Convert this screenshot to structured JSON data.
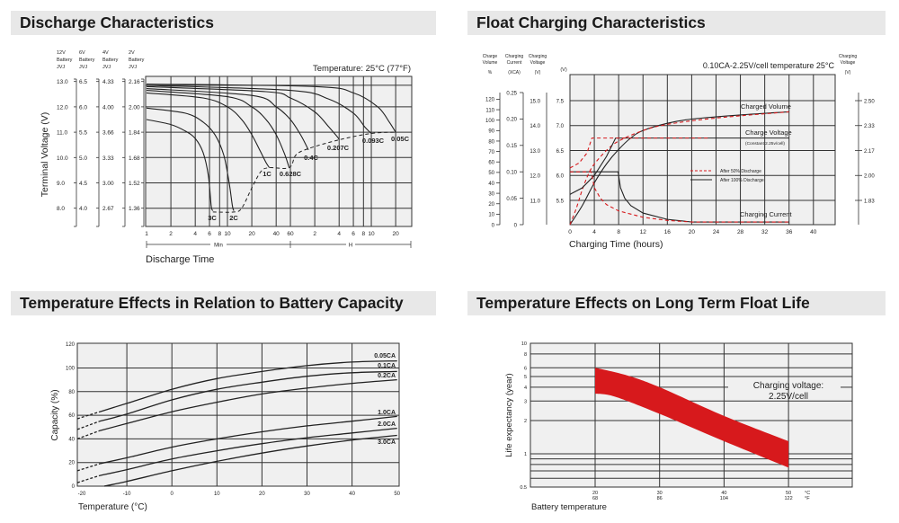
{
  "colors": {
    "accent_red": "#d7191c",
    "grid": "#333333",
    "plot_bg": "#f0f0f0",
    "header_bg": "#e8e8e8"
  },
  "chart_data": [
    {
      "type": "line",
      "title": "Discharge Characteristics",
      "xlabel": "Discharge Time",
      "ylabel": "Terminal Voltage (V)",
      "annotation": "Temperature: 25°C (77°F)",
      "x_scale": "log",
      "x_unit": "minutes",
      "x_ticks_min": [
        "1",
        "2",
        "4",
        "6",
        "8",
        "10",
        "20",
        "40",
        "60"
      ],
      "x_ticks_h": [
        "2",
        "4",
        "6",
        "8",
        "10",
        "20"
      ],
      "x_sections": [
        "Min",
        "H"
      ],
      "voltage_scales": [
        {
          "header": [
            "12V",
            "Battery",
            "JVJ"
          ],
          "ticks": [
            "13.0",
            "12.0",
            "11.0",
            "10.0",
            "9.0",
            "8.0"
          ]
        },
        {
          "header": [
            "6V",
            "Battery",
            "JVJ"
          ],
          "ticks": [
            "6.5",
            "6.0",
            "5.5",
            "5.0",
            "4.5",
            "4.0"
          ]
        },
        {
          "header": [
            "4V",
            "Battery",
            "JVJ"
          ],
          "ticks": [
            "4.33",
            "4.00",
            "3.66",
            "3.33",
            "3.00",
            "2.67"
          ]
        },
        {
          "header": [
            "2V",
            "Battery",
            "JVJ"
          ],
          "ticks": [
            "2.16",
            "2.00",
            "1.84",
            "1.68",
            "1.52",
            "1.36"
          ]
        }
      ],
      "grid": true,
      "series": [
        {
          "name": "3C",
          "points": [
            [
              1,
              11.5
            ],
            [
              2,
              11.3
            ],
            [
              3,
              11.05
            ],
            [
              4,
              10.75
            ],
            [
              5,
              10.2
            ],
            [
              5.8,
              9.3
            ],
            [
              6.3,
              8.1
            ],
            [
              6.6,
              7.9
            ]
          ]
        },
        {
          "name": "2C",
          "points": [
            [
              1,
              11.95
            ],
            [
              3,
              11.75
            ],
            [
              5,
              11.4
            ],
            [
              7,
              10.9
            ],
            [
              9,
              10.1
            ],
            [
              10.5,
              9.0
            ],
            [
              11.5,
              8.1
            ],
            [
              12,
              7.9
            ]
          ]
        },
        {
          "name": "1C",
          "points": [
            [
              1,
              12.55
            ],
            [
              5,
              12.35
            ],
            [
              10,
              12.0
            ],
            [
              15,
              11.5
            ],
            [
              20,
              10.9
            ],
            [
              25,
              10.3
            ],
            [
              30,
              9.8
            ],
            [
              33,
              9.6
            ]
          ]
        },
        {
          "name": "0.628C",
          "points": [
            [
              1,
              12.65
            ],
            [
              10,
              12.4
            ],
            [
              20,
              12.0
            ],
            [
              30,
              11.5
            ],
            [
              40,
              10.9
            ],
            [
              50,
              10.2
            ],
            [
              56,
              9.75
            ],
            [
              58,
              9.6
            ]
          ]
        },
        {
          "name": "0.4C",
          "points": [
            [
              1,
              12.72
            ],
            [
              20,
              12.45
            ],
            [
              40,
              12.0
            ],
            [
              60,
              11.5
            ],
            [
              80,
              10.9
            ],
            [
              95,
              10.45
            ],
            [
              100,
              10.3
            ]
          ]
        },
        {
          "name": "0.207C",
          "points": [
            [
              1,
              12.8
            ],
            [
              30,
              12.6
            ],
            [
              60,
              12.35
            ],
            [
              120,
              11.8
            ],
            [
              180,
              11.2
            ],
            [
              230,
              10.8
            ],
            [
              240,
              10.7
            ]
          ]
        },
        {
          "name": "0.093C",
          "points": [
            [
              1,
              12.85
            ],
            [
              60,
              12.65
            ],
            [
              180,
              12.3
            ],
            [
              360,
              11.75
            ],
            [
              500,
              11.2
            ],
            [
              600,
              10.95
            ]
          ]
        },
        {
          "name": "0.05C",
          "points": [
            [
              1,
              12.9
            ],
            [
              120,
              12.8
            ],
            [
              360,
              12.55
            ],
            [
              720,
              12.0
            ],
            [
              1000,
              11.4
            ],
            [
              1200,
              11.0
            ]
          ]
        }
      ],
      "cutoff_line": [
        [
          6.6,
          7.85
        ],
        [
          12,
          7.85
        ],
        [
          15,
          8.0
        ],
        [
          20,
          8.8
        ],
        [
          26,
          9.45
        ],
        [
          33,
          9.6
        ],
        [
          58,
          9.6
        ],
        [
          70,
          10.1
        ],
        [
          100,
          10.35
        ],
        [
          240,
          10.7
        ],
        [
          600,
          10.95
        ],
        [
          1200,
          11.0
        ]
      ]
    },
    {
      "type": "line",
      "title": "Float Charging Characteristics",
      "xlabel": "Charging Time (hours)",
      "annotation": "0.10CA-2.25V/cell  temperature 25°C",
      "xlim": [
        0,
        40
      ],
      "x_ticks": [
        "0",
        "4",
        "8",
        "12",
        "16",
        "20",
        "24",
        "28",
        "32",
        "36",
        "40"
      ],
      "axes": {
        "charge_volume": {
          "header": [
            "Charge",
            "Volume",
            "%"
          ],
          "ticks": [
            "0",
            "10",
            "20",
            "30",
            "40",
            "50",
            "60",
            "70",
            "80",
            "90",
            "100",
            "110",
            "120"
          ]
        },
        "charging_current": {
          "header": [
            "Charging",
            "Current",
            "(XCA)"
          ],
          "ticks": [
            "0",
            "0.05",
            "0.10",
            "0.15",
            "0.20",
            "0.25"
          ]
        },
        "charging_voltage_12v": {
          "header": [
            "Charging",
            "Voltage",
            "(V)"
          ],
          "ticks": [
            "11.0",
            "12.0",
            "13.0",
            "14.0",
            "15.0"
          ]
        },
        "voltage_6v": {
          "header": [
            "(V)"
          ],
          "ticks": [
            "5.5",
            "6.0",
            "6.5",
            "7.0",
            "7.5"
          ]
        },
        "voltage_cell": {
          "header": [
            "Charging",
            "Voltage",
            "(V)"
          ],
          "ticks": [
            "1.83",
            "2.00",
            "2.17",
            "2.33",
            "2.50"
          ]
        }
      },
      "curve_labels": {
        "volume": "Charged Volume",
        "voltage": "Charge Voltage",
        "voltage_note": "(Constant 2.25v/cell)",
        "current": "Charging Current"
      },
      "legend": {
        "placement": "center-right",
        "entries": [
          {
            "name": "After  50% Discharge",
            "style": "red-dashed"
          },
          {
            "name": "After 100% Discharge",
            "style": "black-solid"
          }
        ]
      },
      "series": [
        {
          "name": "After 100% Discharge",
          "quantity": "charged_volume_pct",
          "points": [
            [
              0,
              0
            ],
            [
              2,
              18
            ],
            [
              4,
              40
            ],
            [
              6,
              58
            ],
            [
              8,
              72
            ],
            [
              10,
              83
            ],
            [
              12,
              90
            ],
            [
              16,
              97
            ],
            [
              20,
              101
            ],
            [
              28,
              105
            ],
            [
              36,
              108
            ]
          ]
        },
        {
          "name": "After  50% Discharge",
          "quantity": "charged_volume_pct",
          "points": [
            [
              0,
              0
            ],
            [
              1,
              15
            ],
            [
              2,
              33
            ],
            [
              3,
              48
            ],
            [
              4,
              58
            ],
            [
              6,
              71
            ],
            [
              8,
              80
            ],
            [
              12,
              90
            ],
            [
              16,
              96
            ],
            [
              24,
              102
            ],
            [
              36,
              108
            ]
          ]
        },
        {
          "name": "After 100% Discharge",
          "quantity": "charge_voltage_6v",
          "points": [
            [
              0,
              5.62
            ],
            [
              2,
              5.75
            ],
            [
              4,
              6.0
            ],
            [
              6,
              6.38
            ],
            [
              7.5,
              6.75
            ],
            [
              12,
              6.75
            ],
            [
              36,
              6.75
            ]
          ]
        },
        {
          "name": "After  50% Discharge",
          "quantity": "charge_voltage_6v",
          "points": [
            [
              0,
              6.15
            ],
            [
              1.5,
              6.25
            ],
            [
              2.8,
              6.45
            ],
            [
              3.6,
              6.75
            ],
            [
              10,
              6.75
            ],
            [
              22.7,
              6.75
            ]
          ]
        },
        {
          "name": "After 100% Discharge",
          "quantity": "charging_current_xca",
          "points": [
            [
              0,
              0.1
            ],
            [
              7.9,
              0.1
            ],
            [
              8.3,
              0.07
            ],
            [
              9,
              0.05
            ],
            [
              10,
              0.036
            ],
            [
              12,
              0.022
            ],
            [
              16,
              0.01
            ],
            [
              20,
              0.005
            ],
            [
              36,
              0.005
            ]
          ]
        },
        {
          "name": "After  50% Discharge",
          "quantity": "charging_current_xca",
          "points": [
            [
              0,
              0.1
            ],
            [
              3.5,
              0.1
            ],
            [
              4,
              0.07
            ],
            [
              5,
              0.05
            ],
            [
              6,
              0.038
            ],
            [
              8,
              0.026
            ],
            [
              12,
              0.014
            ],
            [
              16,
              0.008
            ],
            [
              20,
              0.005
            ],
            [
              36,
              0.005
            ]
          ]
        }
      ]
    },
    {
      "type": "line",
      "title": "Temperature Effects in Relation to Battery Capacity",
      "xlabel": "Temperature (°C)",
      "ylabel": "Capacity (%)",
      "xlim": [
        -20,
        50
      ],
      "ylim": [
        0,
        120
      ],
      "x_ticks": [
        "-20",
        "-10",
        "0",
        "10",
        "20",
        "30",
        "40",
        "50"
      ],
      "y_ticks": [
        "0",
        "20",
        "40",
        "60",
        "80",
        "100",
        "120"
      ],
      "grid": true,
      "series": [
        {
          "name": "0.05CA",
          "x": [
            -21,
            -16,
            -10,
            0,
            10,
            20,
            30,
            40,
            50
          ],
          "values": [
            57,
            63,
            70,
            82,
            91,
            97,
            102,
            105,
            106
          ]
        },
        {
          "name": "0.1CA",
          "x": [
            -21,
            -16,
            -10,
            0,
            10,
            20,
            30,
            40,
            50
          ],
          "values": [
            48,
            55,
            61,
            73,
            82,
            88,
            93,
            96,
            97
          ]
        },
        {
          "name": "0.2CA",
          "x": [
            -21,
            -16,
            -10,
            0,
            10,
            20,
            30,
            40,
            50
          ],
          "values": [
            40,
            47,
            53,
            63,
            71,
            78,
            83,
            87,
            90
          ]
        },
        {
          "name": "1.0CA",
          "x": [
            -21,
            -16,
            -10,
            0,
            10,
            20,
            30,
            40,
            50
          ],
          "values": [
            13,
            19,
            24,
            33,
            40,
            46,
            51,
            55,
            59
          ]
        },
        {
          "name": "2.0CA",
          "x": [
            -21,
            -16,
            -10,
            0,
            10,
            20,
            30,
            40,
            50
          ],
          "values": [
            3,
            9,
            14,
            23,
            30,
            36,
            41,
            45,
            49
          ]
        },
        {
          "name": "3.0CA",
          "x": [
            -15,
            -10,
            0,
            10,
            20,
            30,
            40,
            50
          ],
          "values": [
            0,
            4,
            13,
            21,
            28,
            34,
            39,
            43
          ]
        }
      ]
    },
    {
      "type": "area",
      "title": "Temperature Effects on Long Term Float Life",
      "xlabel": "Battery temperature",
      "ylabel": "Life expectancy (year)",
      "annotation": [
        "Charging voltage:",
        "2.25V/cell"
      ],
      "y_scale": "log",
      "ylim": [
        0.5,
        10
      ],
      "y_ticks": [
        "0.5",
        "1",
        "2",
        "3",
        "4",
        "5",
        "6",
        "8",
        "10"
      ],
      "x_ticks_c": [
        "20",
        "30",
        "40",
        "50"
      ],
      "x_ticks_f": [
        "68",
        "86",
        "104",
        "122"
      ],
      "x_units": [
        "°C",
        "°F"
      ],
      "band_upper": {
        "x": [
          20,
          25,
          30,
          40,
          50
        ],
        "values": [
          6.0,
          5.1,
          4.0,
          2.2,
          1.3
        ]
      },
      "band_lower": {
        "x": [
          20,
          23,
          30,
          40,
          50
        ],
        "values": [
          3.5,
          3.3,
          2.3,
          1.3,
          0.75
        ]
      }
    }
  ]
}
